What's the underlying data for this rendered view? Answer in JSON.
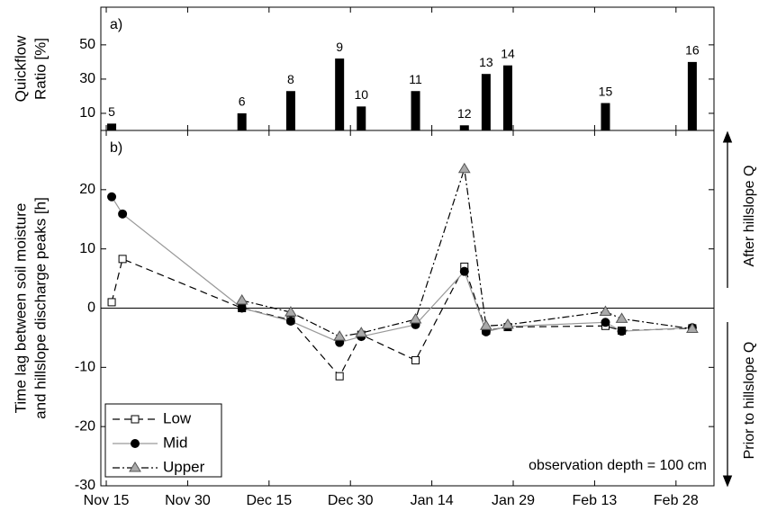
{
  "chart_data": [
    {
      "type": "bar",
      "panel_label": "a)",
      "ylabel": [
        "Quickflow",
        "Ratio [%]"
      ],
      "x": [
        "Nov 16",
        "Dec 10",
        "Dec 19",
        "Dec 28",
        "Jan 1",
        "Jan 11",
        "Jan 20",
        "Jan 24",
        "Jan 28",
        "Feb 15",
        "Mar 3"
      ],
      "labels": [
        "5",
        "6",
        "8",
        "9",
        "10",
        "11",
        "12",
        "13",
        "14",
        "15",
        "16"
      ],
      "values": [
        4,
        10,
        23,
        42,
        14,
        23,
        3,
        33,
        38,
        16,
        40
      ],
      "color": "#000000",
      "xlim": [
        "Nov 14",
        "Mar 7"
      ],
      "xticks": [
        "Nov 15",
        "Nov 30",
        "Dec 15",
        "Dec 30",
        "Jan 14",
        "Jan 29",
        "Feb 13",
        "Feb 28"
      ],
      "ylim": [
        0,
        72
      ],
      "yticks": [
        10,
        30,
        50
      ]
    },
    {
      "type": "line",
      "panel_label": "b)",
      "ylabel": [
        "Time lag between soil moisture",
        "and hillslope discharge peaks [h]"
      ],
      "x": [
        "Nov 16",
        "Nov 18",
        "Dec 10",
        "Dec 19",
        "Dec 28",
        "Jan 1",
        "Jan 11",
        "Jan 20",
        "Jan 24",
        "Jan 28",
        "Feb 15",
        "Feb 18",
        "Mar 3"
      ],
      "series": [
        {
          "name": "Low",
          "color": "#000000",
          "marker": "square",
          "dash": "8 5",
          "values": [
            1,
            8.3,
            0,
            -2,
            -11.5,
            -4.5,
            -8.8,
            7,
            -3.8,
            -3.2,
            -3,
            -3.8,
            -3.4
          ]
        },
        {
          "name": "Mid",
          "color": "#999999",
          "marker": "circle",
          "dash": "none",
          "values": [
            18.8,
            15.9,
            0,
            -2.2,
            -5.8,
            -4.8,
            -2.8,
            6.2,
            -4,
            -3.1,
            -2.4,
            -3.9,
            -3.3
          ]
        },
        {
          "name": "Upper",
          "color": "#000000",
          "marker": "triangle",
          "dash": "8 3 2 3",
          "values": [
            null,
            null,
            1.3,
            -0.7,
            -4.8,
            -4.2,
            -1.9,
            23.5,
            -3,
            -2.8,
            -0.6,
            -1.8,
            -3.5
          ]
        }
      ],
      "hline": 0,
      "xlim": [
        "Nov 14",
        "Mar 7"
      ],
      "xticks": [
        "Nov 15",
        "Nov 30",
        "Dec 15",
        "Dec 30",
        "Jan 14",
        "Jan 29",
        "Feb 13",
        "Feb 28"
      ],
      "ylim": [
        -30,
        30
      ],
      "yticks": [
        -30,
        -20,
        -10,
        0,
        10,
        20
      ],
      "annotation": "observation depth = 100 cm",
      "side_labels": [
        "After hillslope Q",
        "Prior to hillslope Q"
      ],
      "legend": "lower left"
    }
  ]
}
